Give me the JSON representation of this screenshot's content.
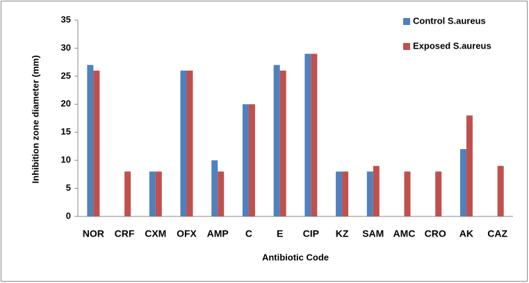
{
  "chart_data": {
    "type": "bar",
    "x_label": "Antibiotic Code",
    "y_label": "Inhibition zone diameter (mm)",
    "categories": [
      "NOR",
      "CRF",
      "CXM",
      "OFX",
      "AMP",
      "C",
      "E",
      "CIP",
      "KZ",
      "SAM",
      "AMC",
      "CRO",
      "AK",
      "CAZ"
    ],
    "series": [
      {
        "name": "Control S.aureus",
        "color": "#4f81bd",
        "values": [
          27,
          0,
          8,
          26,
          10,
          20,
          27,
          29,
          8,
          8,
          0,
          0,
          12,
          0
        ]
      },
      {
        "name": "Exposed S.aureus",
        "color": "#c0504d",
        "values": [
          26,
          8,
          8,
          26,
          8,
          20,
          26,
          29,
          8,
          9,
          8,
          8,
          18,
          9
        ]
      }
    ],
    "ylim": [
      0,
      35
    ],
    "yticks": [
      0,
      5,
      10,
      15,
      20,
      25,
      30,
      35
    ]
  }
}
